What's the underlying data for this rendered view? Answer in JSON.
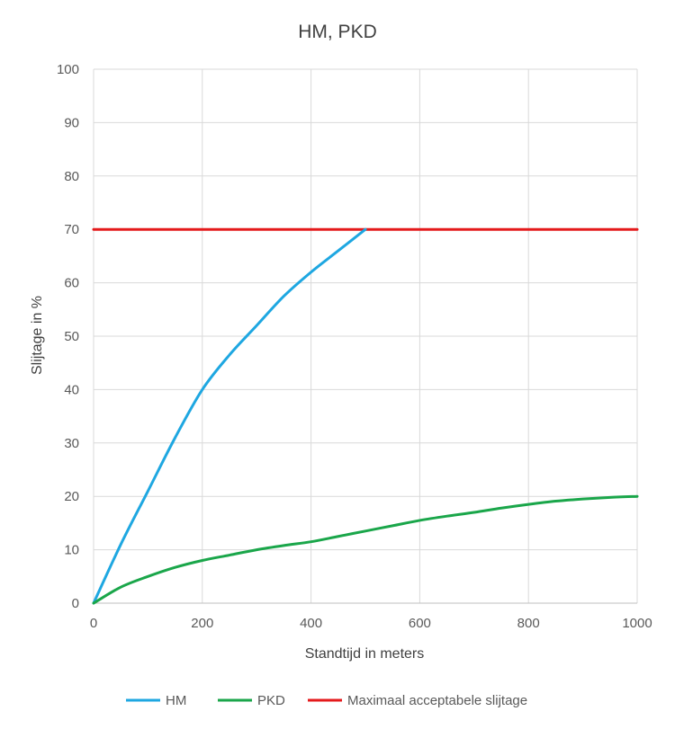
{
  "chart_data": {
    "type": "line",
    "title": "HM, PKD",
    "xlabel": "Standtijd in meters",
    "ylabel": "Slijtage in %",
    "xlim": [
      0,
      1000
    ],
    "ylim": [
      0,
      100
    ],
    "xticks": [
      0,
      200,
      400,
      600,
      800,
      1000
    ],
    "yticks": [
      0,
      10,
      20,
      30,
      40,
      50,
      60,
      70,
      80,
      90,
      100
    ],
    "grid": true,
    "legend": "bottom",
    "series": [
      {
        "name": "HM",
        "color": "#1ea7e1",
        "x": [
          0,
          50,
          100,
          150,
          200,
          250,
          300,
          350,
          400,
          450,
          500
        ],
        "y": [
          0,
          11,
          21,
          31,
          40,
          46.5,
          52,
          57.5,
          62,
          66,
          70
        ]
      },
      {
        "name": "PKD",
        "color": "#1aa64a",
        "x": [
          0,
          50,
          100,
          150,
          200,
          250,
          300,
          350,
          400,
          450,
          500,
          550,
          600,
          650,
          700,
          750,
          800,
          850,
          900,
          950,
          1000
        ],
        "y": [
          0,
          3,
          5,
          6.7,
          8,
          9,
          10,
          10.8,
          11.5,
          12.5,
          13.5,
          14.5,
          15.5,
          16.3,
          17,
          17.8,
          18.5,
          19.1,
          19.5,
          19.8,
          20
        ]
      },
      {
        "name": "Maximaal acceptabele slijtage",
        "color": "#e41a1c",
        "x": [
          0,
          1000
        ],
        "y": [
          70,
          70
        ]
      }
    ]
  }
}
